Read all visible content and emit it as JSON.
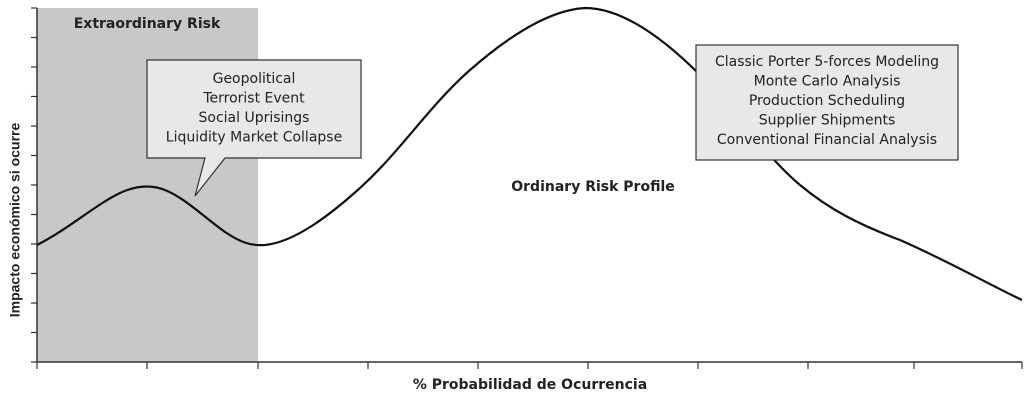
{
  "title_region": "Extraordinary Risk",
  "region_label": "Ordinary Risk Profile",
  "y_axis_label": "Impacto económico si ocurre",
  "x_axis_label": "% Probabilidad de Ocurrencia",
  "callouts": [
    {
      "lines": [
        "Geopolitical",
        "Terrorist Event",
        "Social Uprisings",
        "Liquidity Market Collapse"
      ]
    },
    {
      "lines": [
        "Classic Porter 5-forces Modeling",
        "Monte Carlo Analysis",
        "Production Scheduling",
        "Supplier Shipments",
        "Conventional Financial Analysis"
      ]
    }
  ]
}
